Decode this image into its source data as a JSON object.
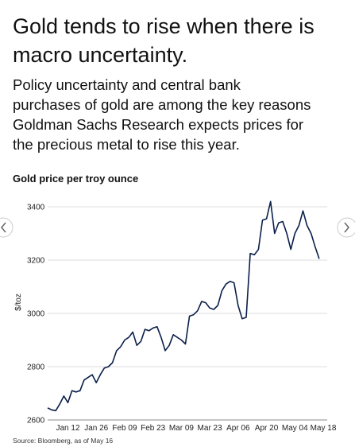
{
  "chart_data": {
    "type": "line",
    "title": [
      "Gold tends to rise when there is",
      "macro uncertainty."
    ],
    "subtitle": [
      "Policy uncertainty and central bank",
      "purchases of gold are among the key reasons",
      "Goldman Sachs Research expects prices for",
      "the precious metal to rise this year."
    ],
    "chart_title": "Gold price per troy ounce",
    "y_label": "$/toz",
    "source": "Source: Bloomberg, as of May 16",
    "categories": [
      null,
      null,
      null,
      null,
      null,
      "Jan 12",
      null,
      null,
      null,
      null,
      null,
      null,
      "Jan 26",
      null,
      null,
      null,
      null,
      null,
      null,
      "Feb 09",
      null,
      null,
      null,
      null,
      null,
      null,
      "Feb 23",
      null,
      null,
      null,
      null,
      null,
      null,
      "Mar 09",
      null,
      null,
      null,
      null,
      null,
      null,
      "Mar 23",
      null,
      null,
      null,
      null,
      null,
      null,
      "Apr 06",
      null,
      null,
      null,
      null,
      null,
      null,
      "Apr 20",
      null,
      null,
      null,
      null,
      null,
      null,
      "May 04",
      null,
      null,
      null,
      null,
      null,
      null,
      "May 18"
    ],
    "values": [
      2645,
      2638,
      2635,
      2660,
      2690,
      2665,
      2710,
      2705,
      2710,
      2750,
      2760,
      2770,
      2740,
      2770,
      2795,
      2800,
      2815,
      2860,
      2875,
      2900,
      2910,
      2930,
      2880,
      2895,
      2940,
      2935,
      2945,
      2950,
      2910,
      2860,
      2880,
      2920,
      2910,
      2900,
      2885,
      2990,
      2995,
      3010,
      3045,
      3040,
      3020,
      3015,
      3030,
      3085,
      3110,
      3120,
      3115,
      3030,
      2980,
      2985,
      3225,
      3220,
      3240,
      3350,
      3355,
      3420,
      3300,
      3340,
      3345,
      3300,
      3240,
      3300,
      3330,
      3385,
      3330,
      3300,
      3250,
      3205,
      null
    ],
    "color": "#0b1f4b",
    "ylim": [
      2600,
      3430
    ],
    "yticks": [
      2600,
      2800,
      3000,
      3200,
      3400
    ],
    "grid": true
  }
}
